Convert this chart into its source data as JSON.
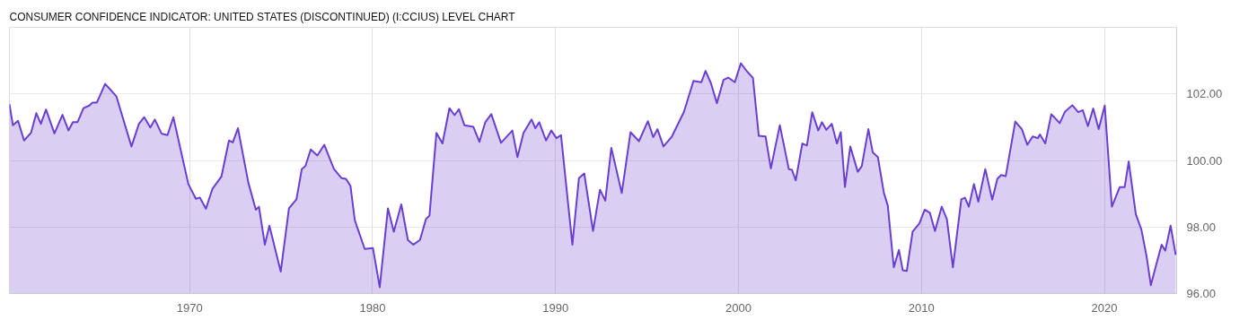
{
  "chart_data": {
    "type": "area",
    "title": "CONSUMER CONFIDENCE INDICATOR: UNITED STATES (DISCONTINUED) (I:CCIUS) LEVEL CHART",
    "x": [
      1960.15,
      1960.34,
      1960.62,
      1960.95,
      1961.33,
      1961.62,
      1961.87,
      1962.15,
      1962.61,
      1963.05,
      1963.38,
      1963.62,
      1963.87,
      1964.2,
      1964.52,
      1964.69,
      1964.93,
      1965.38,
      1965.75,
      1966.0,
      1966.82,
      1967.23,
      1967.52,
      1967.85,
      1968.1,
      1968.46,
      1968.79,
      1969.11,
      1969.93,
      1970.34,
      1970.56,
      1970.89,
      1971.25,
      1971.74,
      1972.15,
      1972.36,
      1972.64,
      1973.21,
      1973.62,
      1973.79,
      1974.11,
      1974.36,
      1974.98,
      1975.43,
      1975.84,
      1976.13,
      1976.33,
      1976.62,
      1976.98,
      1977.36,
      1977.89,
      1978.3,
      1978.54,
      1978.79,
      1979.03,
      1979.57,
      1980.02,
      1980.39,
      1980.84,
      1981.16,
      1981.57,
      1981.93,
      1982.23,
      1982.59,
      1982.92,
      1983.11,
      1983.49,
      1983.82,
      1984.2,
      1984.48,
      1984.72,
      1985.02,
      1985.51,
      1985.84,
      1986.16,
      1986.49,
      1987.02,
      1987.64,
      1987.92,
      1988.25,
      1988.69,
      1988.9,
      1989.11,
      1989.48,
      1989.77,
      1990.05,
      1990.3,
      1990.92,
      1991.28,
      1991.57,
      1992.05,
      1992.43,
      1992.72,
      1993.05,
      1993.62,
      1994.1,
      1994.56,
      1995.05,
      1995.34,
      1995.57,
      1995.9,
      1996.36,
      1997.02,
      1997.54,
      1997.97,
      1998.2,
      1998.49,
      1998.82,
      1999.18,
      1999.44,
      1999.8,
      2000.13,
      2000.49,
      2000.79,
      2001.11,
      2001.48,
      2001.77,
      2002.26,
      2002.75,
      2002.92,
      2003.13,
      2003.49,
      2003.74,
      2004.03,
      2004.36,
      2004.56,
      2004.8,
      2005.1,
      2005.38,
      2005.59,
      2005.82,
      2006.11,
      2006.52,
      2006.74,
      2007.1,
      2007.34,
      2007.62,
      2007.95,
      2008.16,
      2008.49,
      2008.77,
      2008.98,
      2009.2,
      2009.52,
      2009.89,
      2010.18,
      2010.46,
      2010.74,
      2011.11,
      2011.39,
      2011.72,
      2012.18,
      2012.38,
      2012.59,
      2012.87,
      2013.11,
      2013.49,
      2013.87,
      2014.15,
      2014.36,
      2014.61,
      2015.13,
      2015.49,
      2015.79,
      2016.08,
      2016.36,
      2016.48,
      2016.77,
      2017.1,
      2017.56,
      2017.84,
      2018.25,
      2018.57,
      2018.82,
      2019.1,
      2019.39,
      2019.69,
      2020.02,
      2020.41,
      2020.84,
      2021.11,
      2021.33,
      2021.72,
      2022.02,
      2022.31,
      2022.54,
      2022.84,
      2023.13,
      2023.33,
      2023.62,
      2023.9
    ],
    "series": [
      {
        "color": "#6a3fd0",
        "values": [
          101.69,
          101.06,
          101.19,
          100.6,
          100.83,
          101.42,
          101.1,
          101.53,
          100.81,
          101.37,
          100.9,
          101.15,
          101.15,
          101.57,
          101.65,
          101.74,
          101.74,
          102.3,
          102.08,
          101.92,
          100.42,
          101.1,
          101.3,
          100.99,
          101.23,
          100.81,
          100.76,
          101.3,
          99.29,
          98.85,
          98.88,
          98.55,
          99.15,
          99.52,
          100.6,
          100.54,
          100.97,
          99.33,
          98.52,
          98.61,
          97.47,
          98.04,
          96.66,
          98.56,
          98.83,
          99.74,
          99.83,
          100.33,
          100.15,
          100.47,
          99.74,
          99.47,
          99.45,
          99.24,
          98.2,
          97.34,
          97.37,
          96.19,
          98.56,
          97.86,
          98.68,
          97.61,
          97.47,
          97.61,
          98.24,
          98.34,
          100.83,
          100.51,
          101.57,
          101.36,
          101.54,
          101.06,
          101.01,
          100.56,
          101.15,
          101.39,
          100.53,
          100.9,
          100.1,
          100.83,
          101.23,
          100.97,
          101.15,
          100.6,
          100.9,
          100.67,
          100.76,
          97.47,
          99.47,
          99.61,
          97.88,
          99.12,
          98.79,
          100.38,
          99.02,
          100.85,
          100.58,
          101.18,
          100.7,
          100.94,
          100.42,
          100.72,
          101.46,
          102.39,
          102.35,
          102.69,
          102.33,
          101.72,
          102.42,
          102.49,
          102.35,
          102.92,
          102.66,
          102.48,
          100.74,
          100.72,
          99.76,
          101.06,
          99.74,
          99.72,
          99.4,
          100.51,
          100.45,
          101.45,
          100.9,
          101.15,
          100.92,
          101.1,
          100.51,
          100.85,
          99.2,
          100.42,
          99.66,
          99.83,
          100.94,
          100.24,
          100.1,
          99.02,
          98.65,
          96.79,
          97.31,
          96.7,
          96.68,
          97.86,
          98.11,
          98.52,
          98.43,
          97.88,
          98.61,
          98.24,
          96.79,
          98.83,
          98.88,
          98.61,
          99.29,
          98.76,
          99.74,
          98.82,
          99.45,
          99.56,
          99.53,
          101.17,
          100.94,
          100.47,
          100.72,
          100.67,
          100.78,
          100.51,
          101.39,
          101.12,
          101.46,
          101.66,
          101.45,
          101.51,
          101.03,
          101.56,
          100.94,
          101.65,
          98.61,
          99.2,
          99.2,
          99.97,
          98.38,
          97.93,
          97.11,
          96.25,
          96.88,
          97.47,
          97.29,
          98.04,
          97.16
        ]
      }
    ],
    "xlim": [
      1960.15,
      2023.95
    ],
    "ylim": [
      96,
      104
    ],
    "xticks": [
      1970,
      1980,
      1990,
      2000,
      2010,
      2020
    ],
    "yticks": [
      {
        "value": 96,
        "label": "96.00"
      },
      {
        "value": 98,
        "label": "98.00"
      },
      {
        "value": 100,
        "label": "100.00"
      },
      {
        "value": 102,
        "label": "102.00"
      }
    ],
    "grid": true,
    "marker": "none",
    "line_style": "solid"
  }
}
